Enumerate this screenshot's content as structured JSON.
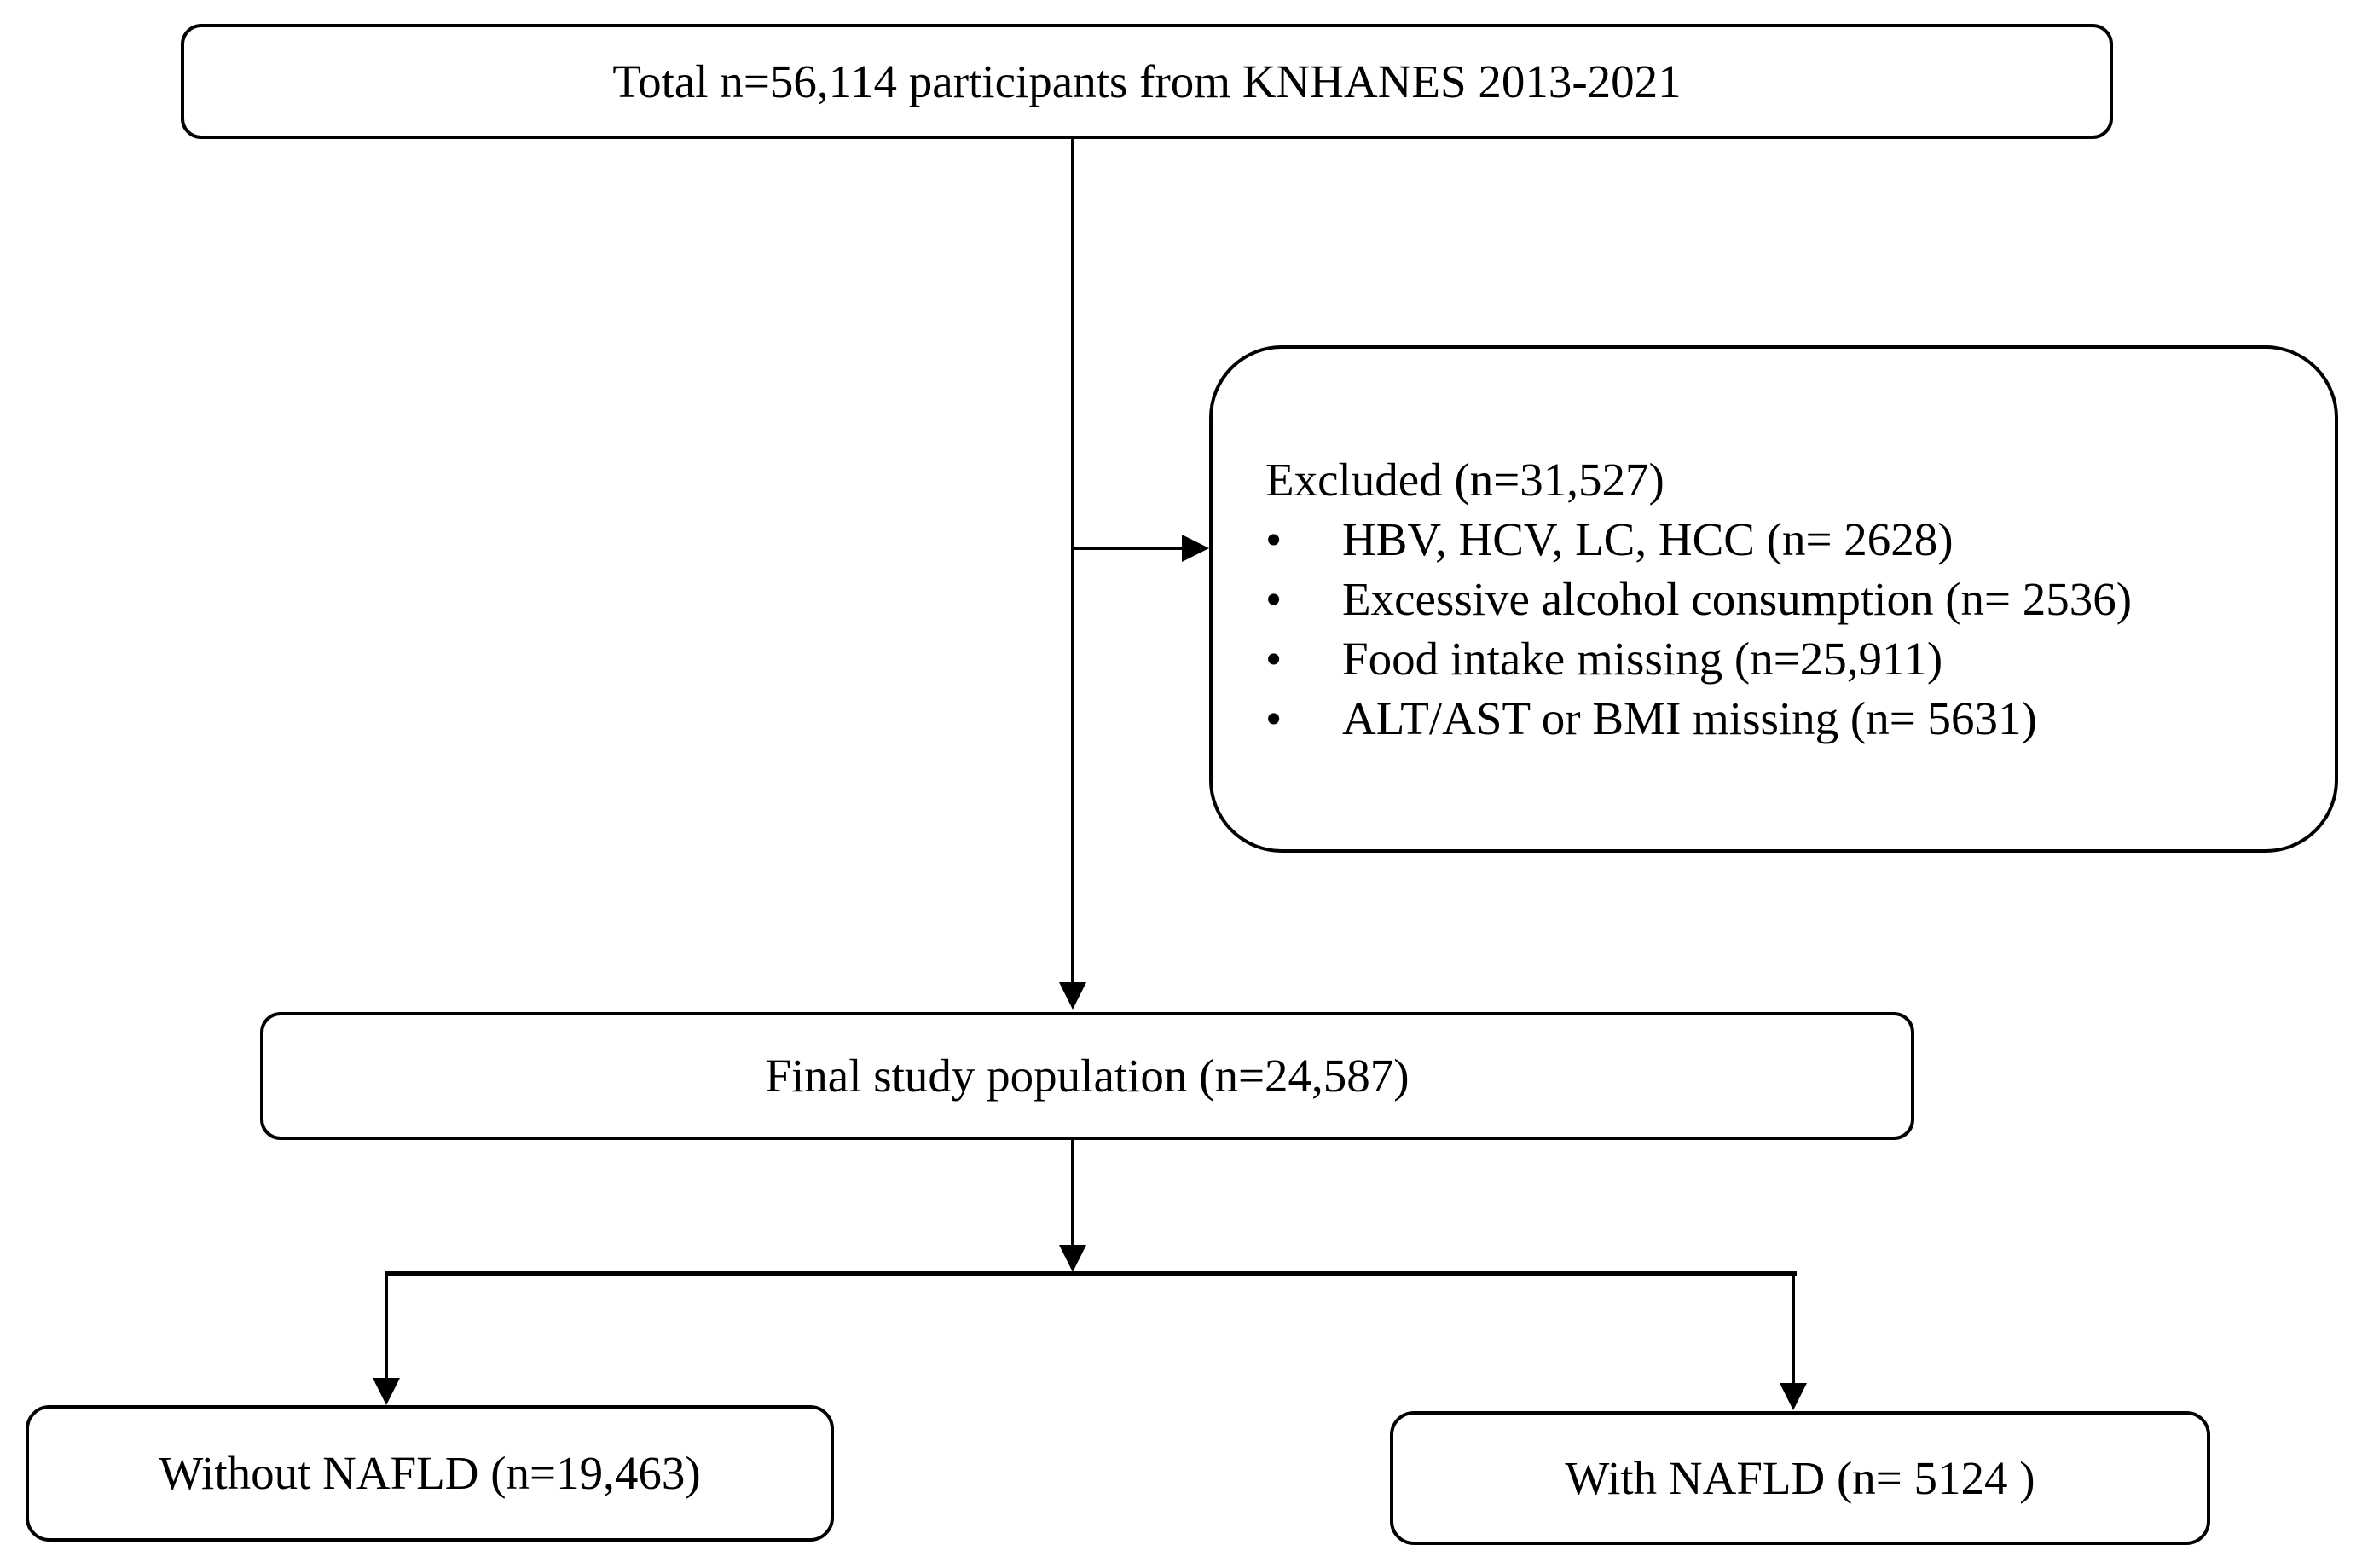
{
  "flowchart": {
    "colors": {
      "line": "#000000",
      "text": "#000000",
      "background": "#ffffff"
    },
    "total_box": {
      "label": "Total n=56,114 participants from KNHANES 2013-2021"
    },
    "excluded_box": {
      "title": "Excluded (n=31,527)",
      "bullet": "•",
      "items": [
        "HBV, HCV, LC, HCC (n= 2628)",
        "Excessive alcohol consumption (n= 2536)",
        "Food intake missing (n=25,911)",
        "ALT/AST or BMI missing (n= 5631)"
      ]
    },
    "final_box": {
      "label": "Final study population (n=24,587)"
    },
    "without_nafld_box": {
      "label": "Without NAFLD (n=19,463)"
    },
    "with_nafld_box": {
      "label": "With NAFLD (n= 5124 )"
    }
  }
}
